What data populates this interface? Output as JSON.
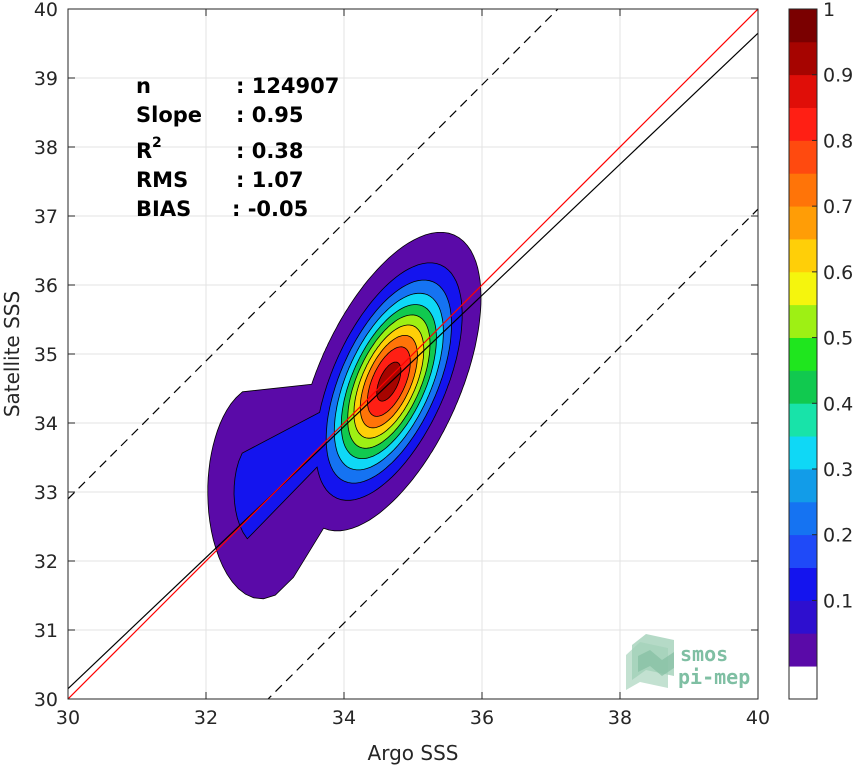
{
  "chart_data": {
    "type": "contour density scatter",
    "xlabel": "Argo SSS",
    "ylabel": "Satellite SSS",
    "xlim": [
      30,
      40
    ],
    "ylim": [
      30,
      40
    ],
    "x_ticks": [
      "30",
      "32",
      "34",
      "36",
      "38",
      "40"
    ],
    "y_ticks": [
      "30",
      "31",
      "32",
      "33",
      "34",
      "35",
      "36",
      "37",
      "38",
      "39",
      "40"
    ],
    "grid": true,
    "stats": {
      "n_label": "n",
      "n_value": ": 124907",
      "slope_label": "Slope",
      "slope_value": ": 0.95",
      "r2_label": "R",
      "r2_sup": "2",
      "r2_value": ": 0.38",
      "rms_label": "RMS",
      "rms_value": ": 1.07",
      "bias_label": "BIAS",
      "bias_value": ": -0.05"
    },
    "lines": {
      "identity": {
        "color": "#ff0000",
        "x": [
          30,
          40
        ],
        "y": [
          30,
          40
        ]
      },
      "regression": {
        "color": "#000000",
        "x": [
          30,
          40
        ],
        "y": [
          30.15,
          39.65
        ]
      },
      "upper_bound": {
        "style": "dashed",
        "x": [
          30,
          37.3
        ],
        "y": [
          32.9,
          40.2
        ]
      },
      "lower_bound": {
        "style": "dashed",
        "x": [
          32.7,
          40
        ],
        "y": [
          29.8,
          37.1
        ]
      }
    },
    "contour_levels": [
      0.05,
      0.15,
      0.25,
      0.35,
      0.45,
      0.55,
      0.65,
      0.75,
      0.85,
      0.95
    ],
    "contour_center": {
      "x": 34.65,
      "y": 34.6
    },
    "colorbar": {
      "ticks": [
        "0.1",
        "0.2",
        "0.3",
        "0.4",
        "0.5",
        "0.6",
        "0.7",
        "0.8",
        "0.9",
        "1"
      ],
      "levels": [
        0.05,
        0.1,
        0.15,
        0.2,
        0.25,
        0.3,
        0.35,
        0.4,
        0.45,
        0.5,
        0.55,
        0.6,
        0.65,
        0.7,
        0.75,
        0.8,
        0.85,
        0.9,
        0.95,
        1.0
      ],
      "colors": [
        "#ffffff",
        "#5a0aa8",
        "#2e0fcf",
        "#1414ee",
        "#1f4af8",
        "#1573f2",
        "#129ce8",
        "#0fd8f6",
        "#18e3a9",
        "#11c94f",
        "#1fe61e",
        "#9ef014",
        "#f5f50d",
        "#ffcf08",
        "#ff9d06",
        "#ff7408",
        "#ff4a0f",
        "#ff1f14",
        "#e00e08",
        "#a60400",
        "#7a0000"
      ]
    },
    "logo": {
      "line1": "smos",
      "line2": "pi-mep"
    }
  }
}
